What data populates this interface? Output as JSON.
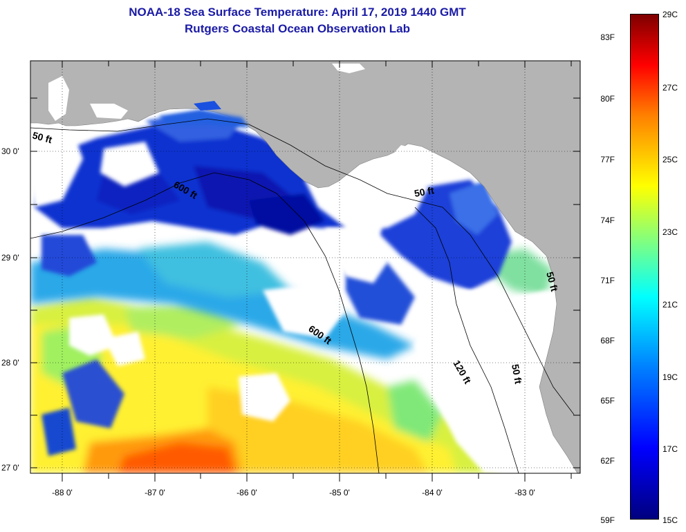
{
  "title": {
    "line1": "NOAA-18 Sea Surface Temperature:  April 17, 2019 1440 GMT",
    "line2": "Rutgers Coastal Ocean Observation Lab"
  },
  "lat_labels": [
    "30 0'",
    "29 0'",
    "28 0'",
    "27 0'"
  ],
  "lon_labels": [
    "-88 0'",
    "-87 0'",
    "-86 0'",
    "-85 0'",
    "-84 0'",
    "-83 0'"
  ],
  "contour_labels": [
    "50 ft",
    "600 ft",
    "50 ft",
    "600 ft",
    "120 ft",
    "50 ft",
    "50 ft"
  ],
  "colorbar": {
    "fahrenheit": [
      "83F",
      "80F",
      "77F",
      "74F",
      "71F",
      "68F",
      "65F",
      "62F",
      "59F"
    ],
    "celsius": [
      "29C",
      "27C",
      "25C",
      "23C",
      "21C",
      "19C",
      "17C",
      "15C"
    ]
  },
  "colors": {
    "land": "#b4b4b4",
    "cloud": "#ffffff",
    "title": "#1a1aa6"
  }
}
